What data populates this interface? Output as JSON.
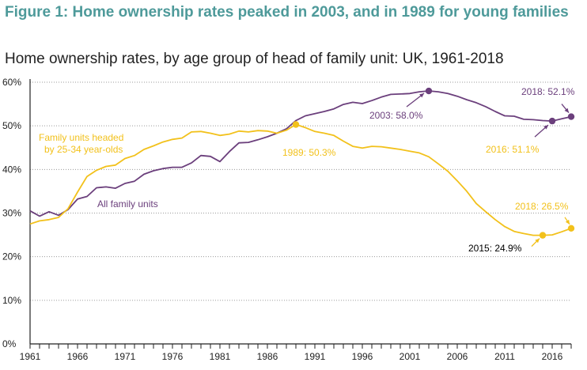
{
  "figure_title": "Figure 1: Home ownership rates peaked in 2003, and in 1989 for young families",
  "colors": {
    "title": "#4e9a9a",
    "all": "#6b3f7c",
    "young": "#f2c11b",
    "grid": "#9a9a9a"
  },
  "chart_data": {
    "type": "line",
    "title": "Home ownership rates, by age group of head of family unit: UK, 1961-2018",
    "xlabel": "",
    "ylabel": "",
    "xlim": [
      1961,
      2018
    ],
    "ylim": [
      0,
      60
    ],
    "xticks": [
      "1961",
      "1966",
      "1971",
      "1976",
      "1981",
      "1986",
      "1991",
      "1996",
      "2001",
      "2006",
      "2011",
      "2016"
    ],
    "yticks": [
      "0%",
      "10%",
      "20%",
      "30%",
      "40%",
      "50%",
      "60%"
    ],
    "grid": "horizontal dotted",
    "series": [
      {
        "name": "All family units",
        "color_key": "all",
        "x": [
          1961,
          1962,
          1963,
          1964,
          1965,
          1966,
          1967,
          1968,
          1969,
          1970,
          1971,
          1972,
          1973,
          1974,
          1975,
          1976,
          1977,
          1978,
          1979,
          1980,
          1981,
          1982,
          1983,
          1984,
          1985,
          1986,
          1987,
          1988,
          1989,
          1990,
          1991,
          1992,
          1993,
          1994,
          1995,
          1996,
          1997,
          1998,
          1999,
          2000,
          2001,
          2002,
          2003,
          2004,
          2005,
          2006,
          2007,
          2008,
          2009,
          2010,
          2011,
          2012,
          2013,
          2014,
          2015,
          2016,
          2017,
          2018
        ],
        "values": [
          30.5,
          29.3,
          30.3,
          29.5,
          30.8,
          33.2,
          33.8,
          35.8,
          36.0,
          35.7,
          36.8,
          37.3,
          38.9,
          39.7,
          40.2,
          40.5,
          40.5,
          41.5,
          43.2,
          43.0,
          41.8,
          44.1,
          46.1,
          46.2,
          46.8,
          47.5,
          48.3,
          49.3,
          51.2,
          52.3,
          52.8,
          53.3,
          53.9,
          54.9,
          55.4,
          55.1,
          55.8,
          56.6,
          57.2,
          57.3,
          57.4,
          57.8,
          58.0,
          57.8,
          57.4,
          56.8,
          56.0,
          55.3,
          54.4,
          53.3,
          52.3,
          52.2,
          51.5,
          51.4,
          51.2,
          51.1,
          51.6,
          52.1
        ]
      },
      {
        "name": "Family units headed by 25-34 year-olds",
        "color_key": "young",
        "x": [
          1961,
          1962,
          1963,
          1964,
          1965,
          1966,
          1967,
          1968,
          1969,
          1970,
          1971,
          1972,
          1973,
          1974,
          1975,
          1976,
          1977,
          1978,
          1979,
          1980,
          1981,
          1982,
          1983,
          1984,
          1985,
          1986,
          1987,
          1988,
          1989,
          1990,
          1991,
          1992,
          1993,
          1994,
          1995,
          1996,
          1997,
          1998,
          1999,
          2000,
          2001,
          2002,
          2003,
          2004,
          2005,
          2006,
          2007,
          2008,
          2009,
          2010,
          2011,
          2012,
          2013,
          2014,
          2015,
          2016,
          2017,
          2018
        ],
        "values": [
          27.5,
          28.2,
          28.5,
          29.0,
          31.0,
          34.8,
          38.4,
          39.8,
          40.7,
          41.0,
          42.5,
          43.2,
          44.6,
          45.4,
          46.3,
          46.9,
          47.2,
          48.6,
          48.7,
          48.3,
          47.8,
          48.1,
          48.8,
          48.6,
          48.9,
          48.8,
          48.3,
          49.0,
          50.3,
          49.6,
          48.7,
          48.3,
          47.8,
          46.5,
          45.3,
          44.9,
          45.3,
          45.2,
          44.9,
          44.6,
          44.2,
          43.8,
          42.9,
          41.3,
          39.6,
          37.4,
          35.0,
          32.2,
          30.3,
          28.5,
          26.9,
          25.8,
          25.3,
          24.9,
          24.9,
          25.0,
          25.7,
          26.5
        ]
      }
    ],
    "annotations": [
      {
        "label": "2003: 58.0%",
        "x": 2003,
        "y": 58.0,
        "series": "all"
      },
      {
        "label": "2018: 52.1%",
        "x": 2018,
        "y": 52.1,
        "series": "all"
      },
      {
        "label": "2016: 51.1%",
        "x": 2016,
        "y": 51.1,
        "series": "all"
      },
      {
        "label": "1989: 50.3%",
        "x": 1989,
        "y": 50.3,
        "series": "young"
      },
      {
        "label": "2018: 26.5%",
        "x": 2018,
        "y": 26.5,
        "series": "young"
      },
      {
        "label": "2015: 24.9%",
        "x": 2015,
        "y": 24.9,
        "series": "young"
      }
    ],
    "legend_labels": {
      "young_line1": "Family units headed",
      "young_line2": "by 25-34 year-olds",
      "all": "All family units"
    }
  }
}
